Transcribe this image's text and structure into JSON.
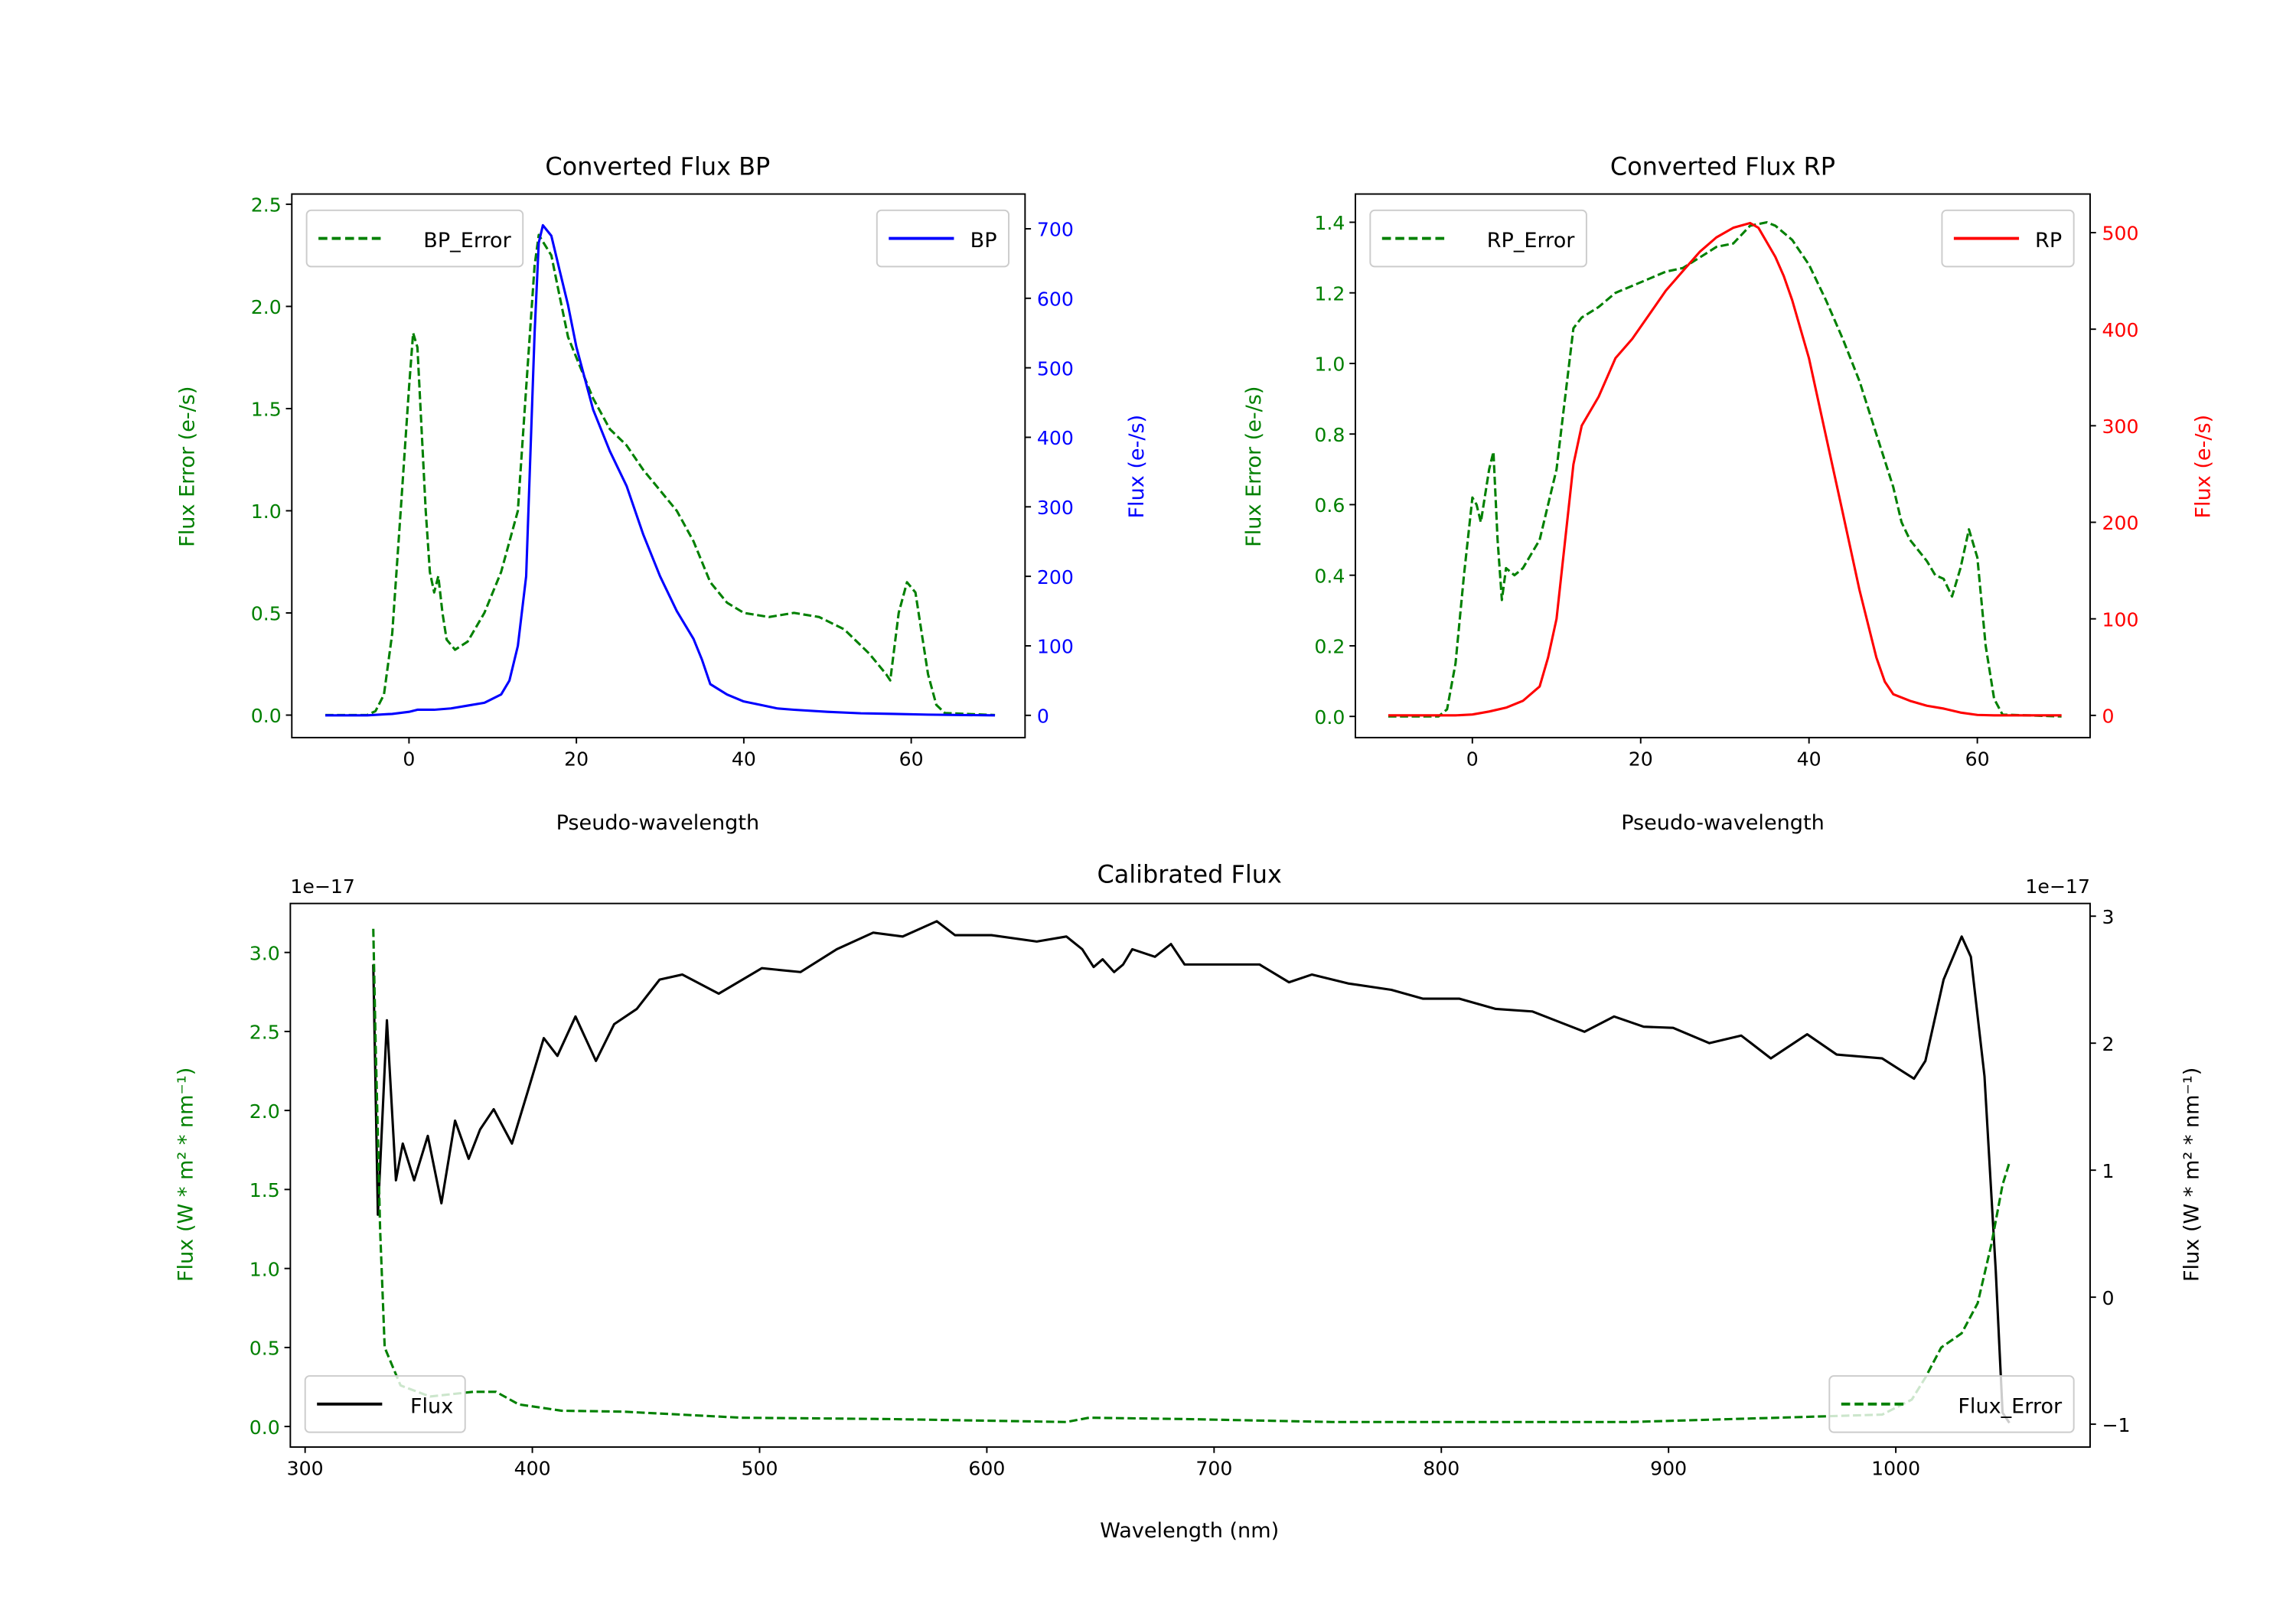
{
  "chart_data": [
    {
      "type": "line",
      "title": "Converted Flux BP",
      "xlabel": "Pseudo-wavelength",
      "ylabel": "Flux Error (e-/s)",
      "ylabel_right": "Flux (e-/s)",
      "xlim": [
        -14,
        73.6
      ],
      "ylim": [
        -0.11,
        2.55
      ],
      "ylim_right": [
        -32,
        750
      ],
      "xticks": [
        0,
        20,
        40,
        60
      ],
      "yticks": [
        "0.0",
        "0.5",
        "1.0",
        "1.5",
        "2.0",
        "2.5"
      ],
      "yticks_right": [
        "0",
        "100",
        "200",
        "300",
        "400",
        "500",
        "600",
        "700"
      ],
      "colors": {
        "left": "#008000",
        "right": "#0000ff"
      },
      "legend_left": "BP_Error",
      "legend_right": "BP",
      "series": [
        {
          "name": "BP_Error",
          "axis": "left",
          "style": "dashed",
          "color": "#008000",
          "x": [
            -10,
            -5,
            -4,
            -3,
            -2,
            -1,
            0,
            0.5,
            1,
            2,
            2.5,
            3,
            3.5,
            4,
            4.5,
            5.5,
            7,
            9,
            11,
            13,
            14,
            15,
            15.5,
            17,
            18,
            19,
            20,
            22,
            24,
            26,
            28,
            30,
            32,
            34,
            36,
            38,
            40,
            43,
            46,
            49,
            52,
            55,
            57,
            57.5,
            58.5,
            59.5,
            60.5,
            62,
            63,
            64,
            70
          ],
          "y": [
            0,
            0,
            0.02,
            0.1,
            0.4,
            1.0,
            1.6,
            1.87,
            1.8,
            1.0,
            0.7,
            0.6,
            0.68,
            0.5,
            0.37,
            0.32,
            0.36,
            0.5,
            0.7,
            1.0,
            1.6,
            2.2,
            2.35,
            2.25,
            2.05,
            1.85,
            1.75,
            1.55,
            1.4,
            1.32,
            1.2,
            1.1,
            1.0,
            0.85,
            0.65,
            0.55,
            0.5,
            0.48,
            0.5,
            0.48,
            0.42,
            0.3,
            0.2,
            0.17,
            0.5,
            0.65,
            0.6,
            0.2,
            0.05,
            0.01,
            0
          ]
        },
        {
          "name": "BP",
          "axis": "right",
          "style": "solid",
          "color": "#0000ff",
          "x": [
            -10,
            -5,
            -2,
            0,
            1,
            3,
            5,
            7,
            9,
            11,
            12,
            13,
            14,
            15,
            15.5,
            16,
            17,
            18,
            19,
            20,
            22,
            24,
            26,
            28,
            30,
            32,
            34,
            35,
            36,
            38,
            40,
            42,
            44,
            46,
            50,
            54,
            58,
            62,
            70
          ],
          "y": [
            0,
            0,
            2,
            5,
            8,
            8,
            10,
            14,
            18,
            30,
            50,
            100,
            200,
            550,
            680,
            705,
            690,
            640,
            590,
            530,
            440,
            380,
            330,
            260,
            200,
            150,
            110,
            80,
            45,
            30,
            20,
            15,
            10,
            8,
            5,
            3,
            2,
            1,
            0
          ]
        }
      ]
    },
    {
      "type": "line",
      "title": "Converted Flux RP",
      "xlabel": "Pseudo-wavelength",
      "ylabel": "Flux Error (e-/s)",
      "ylabel_right": "Flux (e-/s)",
      "xlim": [
        -13.9,
        73.4
      ],
      "ylim": [
        -0.06,
        1.48
      ],
      "ylim_right": [
        -23,
        540
      ],
      "xticks": [
        0,
        20,
        40,
        60
      ],
      "yticks": [
        "0.0",
        "0.2",
        "0.4",
        "0.6",
        "0.8",
        "1.0",
        "1.2",
        "1.4"
      ],
      "yticks_right": [
        "0",
        "100",
        "200",
        "300",
        "400",
        "500"
      ],
      "colors": {
        "left": "#008000",
        "right": "#ff0000"
      },
      "legend_left": "RP_Error",
      "legend_right": "RP",
      "series": [
        {
          "name": "RP_Error",
          "axis": "left",
          "style": "dashed",
          "color": "#008000",
          "x": [
            -10,
            -4,
            -3,
            -2,
            -1,
            0,
            0.5,
            1,
            2,
            2.5,
            3,
            3.5,
            4,
            5,
            6,
            8,
            10,
            11,
            12,
            13,
            15,
            17,
            19,
            21,
            23,
            25,
            27,
            29,
            31,
            33,
            35,
            36,
            38,
            40,
            42,
            44,
            46,
            48,
            50,
            51,
            52,
            54,
            55,
            56,
            57,
            58,
            59,
            60,
            61,
            62,
            63,
            70
          ],
          "y": [
            0,
            0,
            0.02,
            0.15,
            0.4,
            0.62,
            0.6,
            0.55,
            0.7,
            0.75,
            0.5,
            0.33,
            0.42,
            0.4,
            0.42,
            0.5,
            0.7,
            0.9,
            1.1,
            1.13,
            1.16,
            1.2,
            1.22,
            1.24,
            1.26,
            1.27,
            1.3,
            1.33,
            1.34,
            1.39,
            1.4,
            1.39,
            1.35,
            1.28,
            1.18,
            1.07,
            0.95,
            0.8,
            0.65,
            0.55,
            0.5,
            0.44,
            0.4,
            0.39,
            0.34,
            0.42,
            0.53,
            0.45,
            0.2,
            0.05,
            0.005,
            0
          ]
        },
        {
          "name": "RP",
          "axis": "right",
          "style": "solid",
          "color": "#ff0000",
          "x": [
            -10,
            -2,
            0,
            2,
            4,
            6,
            8,
            9,
            10,
            11,
            12,
            13,
            15,
            17,
            19,
            21,
            23,
            25,
            27,
            29,
            31,
            33,
            34,
            35,
            36,
            37,
            38,
            40,
            42,
            44,
            46,
            48,
            49,
            50,
            52,
            54,
            56,
            58,
            60,
            62,
            70
          ],
          "y": [
            0,
            0,
            1,
            4,
            8,
            15,
            30,
            60,
            100,
            180,
            260,
            300,
            330,
            370,
            390,
            415,
            440,
            460,
            480,
            495,
            505,
            510,
            505,
            490,
            475,
            455,
            430,
            370,
            290,
            210,
            130,
            60,
            35,
            22,
            15,
            10,
            7,
            3,
            0.5,
            0,
            0
          ]
        }
      ]
    },
    {
      "type": "line",
      "title": "Calibrated Flux",
      "xlabel": "Wavelength (nm)",
      "ylabel": "Flux (W * m² * nm⁻¹)",
      "ylabel_right": "Flux (W * m² * nm⁻¹)",
      "offset_left": "1e−17",
      "offset_right": "1e−17",
      "xlim": [
        293.5,
        1085.5
      ],
      "ylim": [
        -0.13,
        3.31
      ],
      "ylim_right": [
        -1.18,
        3.1
      ],
      "xticks": [
        300,
        400,
        500,
        600,
        700,
        800,
        900,
        1000
      ],
      "yticks": [
        "0.0",
        "0.5",
        "1.0",
        "1.5",
        "2.0",
        "2.5",
        "3.0"
      ],
      "yticks_right": [
        "−1",
        "0",
        "1",
        "2",
        "3"
      ],
      "colors": {
        "left": "#008000",
        "right": "#000000"
      },
      "legend_left": "Flux",
      "legend_right": "Flux_Error",
      "series": [
        {
          "name": "Flux",
          "axis": "right",
          "style": "solid",
          "color": "#000000",
          "x": [
            330,
            332,
            336,
            340,
            343,
            348,
            354,
            360,
            366,
            372,
            377,
            383,
            391,
            398,
            405,
            411,
            419,
            428,
            436,
            446,
            456,
            466,
            482,
            501,
            518,
            534,
            550,
            563,
            578,
            586,
            602,
            622,
            635,
            642,
            647,
            651,
            656,
            660,
            664,
            674,
            681,
            687,
            697,
            720,
            733,
            743,
            759,
            778,
            792,
            808,
            824,
            840,
            863,
            876,
            889,
            902,
            918,
            932,
            945,
            961,
            974,
            994,
            1008,
            1013,
            1021,
            1029,
            1033,
            1039,
            1044,
            1047,
            1050
          ],
          "y": [
            2.62,
            0.65,
            2.18,
            0.92,
            1.21,
            0.92,
            1.27,
            0.74,
            1.39,
            1.09,
            1.32,
            1.48,
            1.21,
            1.62,
            2.04,
            1.9,
            2.21,
            1.86,
            2.15,
            2.27,
            2.5,
            2.54,
            2.39,
            2.59,
            2.56,
            2.74,
            2.87,
            2.84,
            2.96,
            2.85,
            2.85,
            2.8,
            2.84,
            2.74,
            2.6,
            2.66,
            2.56,
            2.62,
            2.74,
            2.68,
            2.78,
            2.62,
            2.62,
            2.62,
            2.48,
            2.54,
            2.47,
            2.42,
            2.35,
            2.35,
            2.27,
            2.25,
            2.09,
            2.21,
            2.13,
            2.12,
            2.0,
            2.06,
            1.88,
            2.07,
            1.91,
            1.88,
            1.72,
            1.86,
            2.5,
            2.84,
            2.68,
            1.74,
            0.21,
            -0.91,
            -0.99
          ]
        },
        {
          "name": "Flux_Error",
          "axis": "left",
          "style": "dashed",
          "color": "#008000",
          "x": [
            330,
            331,
            333,
            335,
            342,
            355,
            374,
            384,
            394,
            413,
            440,
            492,
            557,
            635,
            645,
            687,
            752,
            883,
            948,
            994,
            1007,
            1013,
            1020,
            1029,
            1036,
            1042,
            1047,
            1050
          ],
          "y": [
            3.15,
            2.46,
            1.25,
            0.5,
            0.26,
            0.19,
            0.22,
            0.22,
            0.14,
            0.1,
            0.094,
            0.056,
            0.047,
            0.028,
            0.056,
            0.047,
            0.028,
            0.028,
            0.056,
            0.075,
            0.17,
            0.31,
            0.5,
            0.59,
            0.78,
            1.15,
            1.53,
            1.67
          ]
        }
      ]
    }
  ]
}
